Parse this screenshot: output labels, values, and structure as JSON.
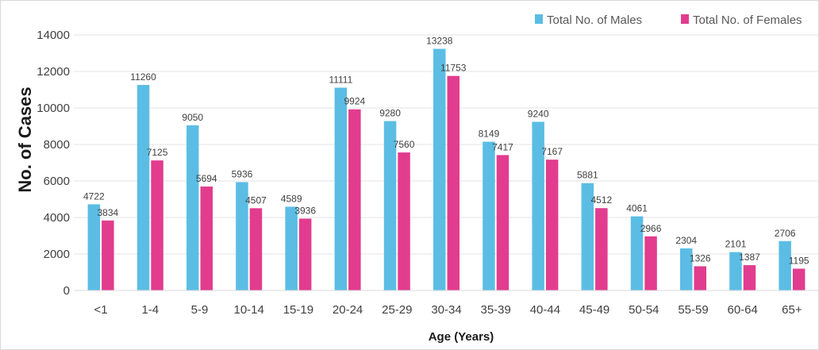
{
  "chart_data": {
    "type": "bar",
    "title": "",
    "xlabel": "Age (Years)",
    "ylabel": "No. of Cases",
    "ylim": [
      0,
      14000
    ],
    "yticks": [
      0,
      2000,
      4000,
      6000,
      8000,
      10000,
      12000,
      14000
    ],
    "grid": true,
    "legend_position": "top-right",
    "categories": [
      "<1",
      "1-4",
      "5-9",
      "10-14",
      "15-19",
      "20-24",
      "25-29",
      "30-34",
      "35-39",
      "40-44",
      "45-49",
      "50-54",
      "55-59",
      "60-64",
      "65+"
    ],
    "series": [
      {
        "name": "Total No. of Males",
        "color": "#5bbde4",
        "values": [
          4722,
          11260,
          9050,
          5936,
          4589,
          11111,
          9280,
          13238,
          8149,
          9240,
          5881,
          4061,
          2304,
          2101,
          2706
        ]
      },
      {
        "name": "Total No. of Females",
        "color": "#e23c8e",
        "values": [
          3834,
          7125,
          5694,
          4507,
          3936,
          9924,
          7560,
          11753,
          7417,
          7167,
          4512,
          2966,
          1326,
          1387,
          1195
        ]
      }
    ]
  }
}
